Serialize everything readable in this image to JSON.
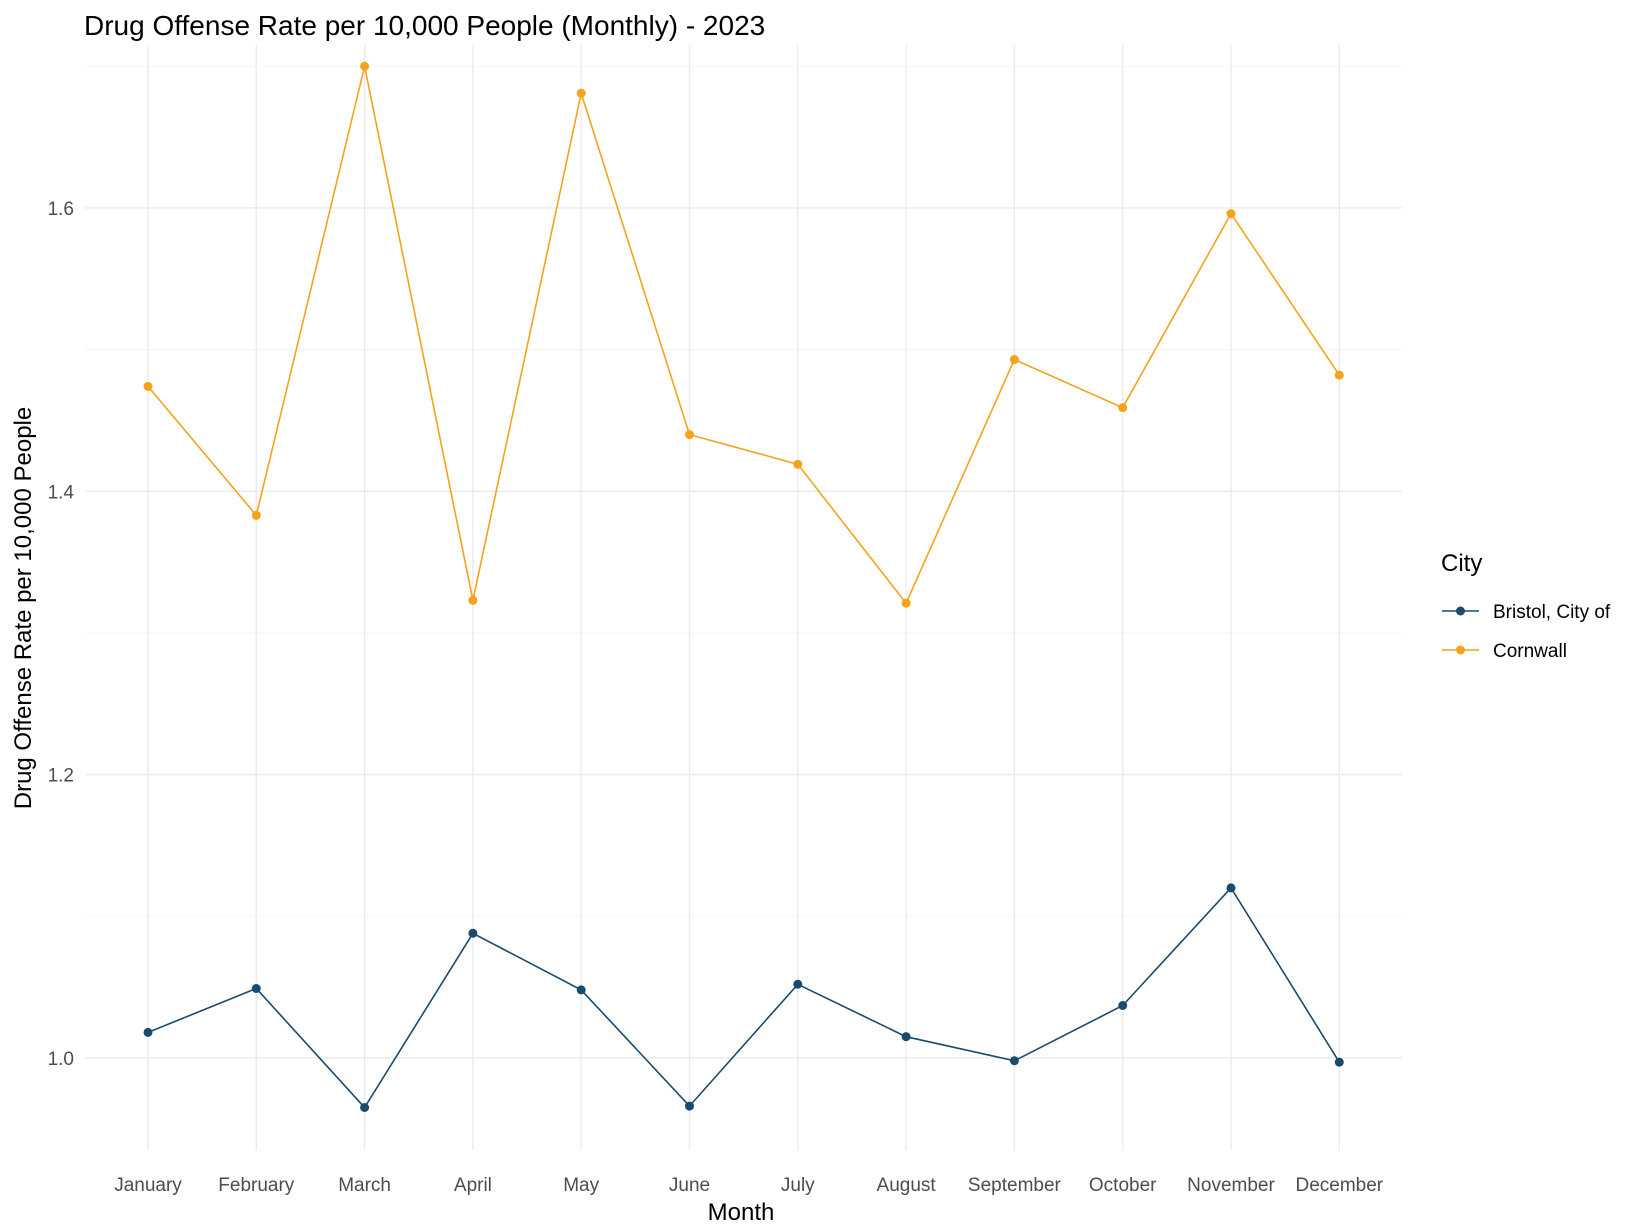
{
  "chart_data": {
    "type": "line",
    "title": "Drug Offense Rate per 10,000 People (Monthly) - 2023",
    "xlabel": "Month",
    "ylabel": "Drug Offense Rate per 10,000 People",
    "categories": [
      "January",
      "February",
      "March",
      "April",
      "May",
      "June",
      "July",
      "August",
      "September",
      "October",
      "November",
      "December"
    ],
    "ylim": [
      0.935,
      1.715
    ],
    "yticks": [
      1.0,
      1.2,
      1.4,
      1.6
    ],
    "ytick_labels": [
      "1.0",
      "1.2",
      "1.4",
      "1.6"
    ],
    "grid": true,
    "legend": {
      "title": "City",
      "position": "right"
    },
    "series": [
      {
        "name": "Bristol, City of",
        "color": "#1a4a6e",
        "values": [
          1.018,
          1.049,
          0.965,
          1.088,
          1.048,
          0.966,
          1.052,
          1.015,
          0.998,
          1.037,
          1.12,
          0.997
        ]
      },
      {
        "name": "Cornwall",
        "color": "#f5a31c",
        "values": [
          1.474,
          1.383,
          1.7,
          1.323,
          1.681,
          1.44,
          1.419,
          1.321,
          1.493,
          1.459,
          1.596,
          1.482
        ]
      }
    ]
  }
}
